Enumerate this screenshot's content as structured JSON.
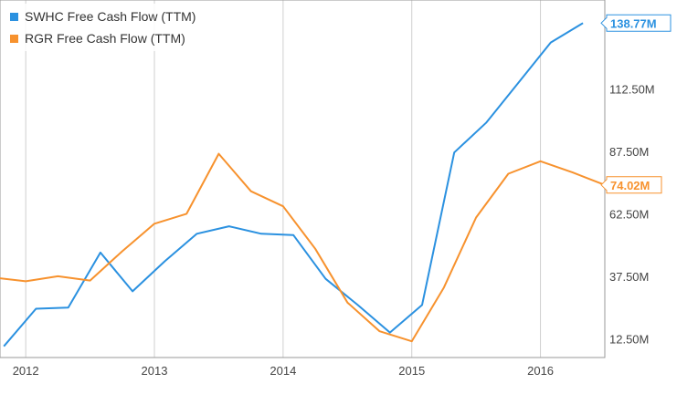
{
  "chart_data": {
    "type": "line",
    "grid": "vertical gridlines at year ticks",
    "legend_position": "top-left",
    "x_axis": {
      "ticks": [
        "2012",
        "2013",
        "2014",
        "2015",
        "2016"
      ],
      "range": [
        2011.8,
        2016.5
      ]
    },
    "y_axis": {
      "ticks": [
        "12.50M",
        "37.50M",
        "62.50M",
        "87.50M",
        "112.50M"
      ],
      "tick_values": [
        12.5,
        37.5,
        62.5,
        87.5,
        112.5
      ],
      "range": [
        5,
        148
      ],
      "side": "right"
    },
    "series": [
      {
        "name": "SWHC Free Cash Flow (TTM)",
        "color": "#2b91e0",
        "end_label": "138.77M",
        "end_value": 138.77,
        "points": [
          [
            2011.83,
            9.5
          ],
          [
            2012.08,
            24.5
          ],
          [
            2012.33,
            25.0
          ],
          [
            2012.58,
            47.0
          ],
          [
            2012.83,
            31.5
          ],
          [
            2013.08,
            43.5
          ],
          [
            2013.33,
            54.5
          ],
          [
            2013.58,
            57.5
          ],
          [
            2013.83,
            54.5
          ],
          [
            2014.08,
            54.0
          ],
          [
            2014.33,
            36.5
          ],
          [
            2014.58,
            26.0
          ],
          [
            2014.83,
            15.0
          ],
          [
            2015.08,
            26.0
          ],
          [
            2015.33,
            87.0
          ],
          [
            2015.58,
            99.0
          ],
          [
            2015.83,
            115.0
          ],
          [
            2016.08,
            131.0
          ],
          [
            2016.33,
            138.77
          ]
        ]
      },
      {
        "name": "RGR Free Cash Flow (TTM)",
        "color": "#f7922e",
        "end_label": "74.02M",
        "end_value": 74.02,
        "points": [
          [
            2011.75,
            37.0
          ],
          [
            2012.0,
            35.5
          ],
          [
            2012.25,
            37.5
          ],
          [
            2012.5,
            35.8
          ],
          [
            2012.75,
            47.5
          ],
          [
            2013.0,
            58.5
          ],
          [
            2013.25,
            62.5
          ],
          [
            2013.5,
            86.5
          ],
          [
            2013.75,
            71.5
          ],
          [
            2014.0,
            65.5
          ],
          [
            2014.25,
            48.5
          ],
          [
            2014.5,
            27.0
          ],
          [
            2014.75,
            15.5
          ],
          [
            2015.0,
            11.5
          ],
          [
            2015.25,
            33.0
          ],
          [
            2015.5,
            61.0
          ],
          [
            2015.75,
            78.5
          ],
          [
            2016.0,
            83.5
          ],
          [
            2016.25,
            79.0
          ],
          [
            2016.5,
            74.02
          ]
        ]
      }
    ]
  }
}
